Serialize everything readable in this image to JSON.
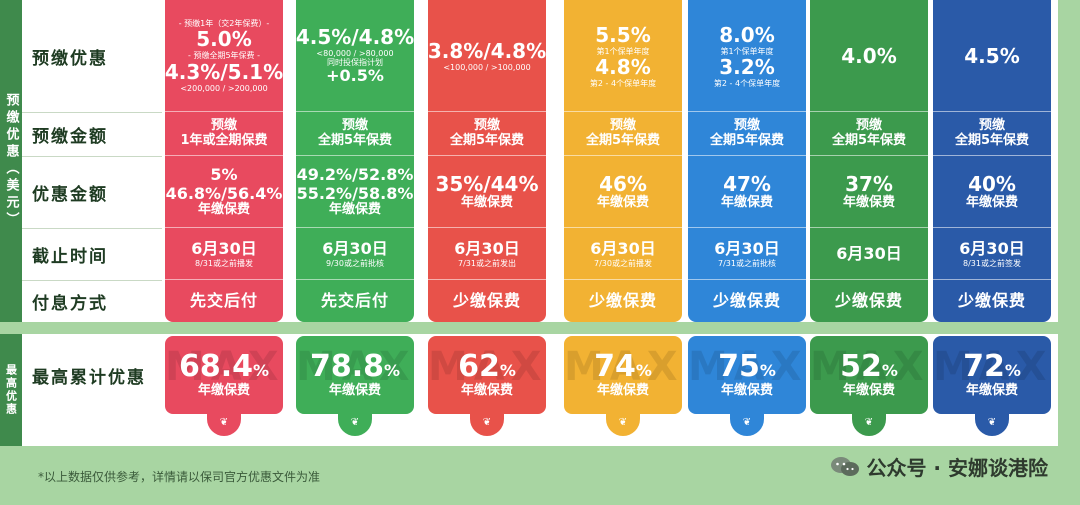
{
  "side_labels": {
    "top": "预缴优惠（美元）",
    "bottom": "最高优惠"
  },
  "row_labels": [
    "预缴优惠",
    "预缴金额",
    "优惠金额",
    "截止时间",
    "付息方式"
  ],
  "max_row_label": "最高累计优惠",
  "watermark": "MAX",
  "columns": [
    {
      "color": "#e84a5f",
      "discount": [
        "- 预缴1年（交2年保费）-",
        "5.0%",
        "- 预缴全期5年保费 -",
        "4.3%/5.1%",
        "<200,000  /  >200,000"
      ],
      "prepay": [
        "预缴",
        "1年或全期保费"
      ],
      "amount": [
        "5%",
        "46.8%/56.4%",
        "年缴保费"
      ],
      "deadline": [
        "6月30日",
        "8/31或之前播发"
      ],
      "payment": "先交后付",
      "max": [
        "68.4",
        "%",
        "年缴保费"
      ]
    },
    {
      "color": "#3fae58",
      "discount": [
        "4.5%/4.8%",
        "<80,000  /  >80,000",
        "同时投保指计划",
        "+0.5%"
      ],
      "prepay": [
        "预缴",
        "全期5年保费"
      ],
      "amount": [
        "49.2%/52.8%",
        "55.2%/58.8%",
        "年缴保费"
      ],
      "deadline": [
        "6月30日",
        "9/30或之前批核"
      ],
      "payment": "先交后付",
      "max": [
        "78.8",
        "%",
        "年缴保费"
      ]
    },
    {
      "color": "#e8524a",
      "discount": [
        "3.8%/4.8%",
        "<100,000  /  >100,000"
      ],
      "prepay": [
        "预缴",
        "全期5年保费"
      ],
      "amount": [
        "35%/44%",
        "年缴保费"
      ],
      "deadline": [
        "6月30日",
        "7/31或之前发出"
      ],
      "payment": "少缴保费",
      "max": [
        "62",
        "%",
        "年缴保费"
      ]
    },
    {
      "color": "#f2b233",
      "discount": [
        "5.5%",
        "第1个保单年度",
        "4.8%",
        "第2 - 4个保单年度"
      ],
      "prepay": [
        "预缴",
        "全期5年保费"
      ],
      "amount": [
        "46%",
        "年缴保费"
      ],
      "deadline": [
        "6月30日",
        "7/30或之前播发"
      ],
      "payment": "少缴保费",
      "max": [
        "74",
        "%",
        "年缴保费"
      ]
    },
    {
      "color": "#2f86d8",
      "discount": [
        "8.0%",
        "第1个保单年度",
        "3.2%",
        "第2 - 4个保单年度"
      ],
      "prepay": [
        "预缴",
        "全期5年保费"
      ],
      "amount": [
        "47%",
        "年缴保费"
      ],
      "deadline": [
        "6月30日",
        "7/31或之前批核"
      ],
      "payment": "少缴保费",
      "max": [
        "75",
        "%",
        "年缴保费"
      ]
    },
    {
      "color": "#3c9a4d",
      "discount": [
        "4.0%"
      ],
      "prepay": [
        "预缴",
        "全期5年保费"
      ],
      "amount": [
        "37%",
        "年缴保费"
      ],
      "deadline": [
        "6月30日"
      ],
      "payment": "少缴保费",
      "max": [
        "52",
        "%",
        "年缴保费"
      ]
    },
    {
      "color": "#2a5aa8",
      "discount": [
        "4.5%"
      ],
      "prepay": [
        "预缴",
        "全期5年保费"
      ],
      "amount": [
        "40%",
        "年缴保费"
      ],
      "deadline": [
        "6月30日",
        "8/31或之前签发"
      ],
      "payment": "少缴保费",
      "max": [
        "72",
        "%",
        "年缴保费"
      ]
    }
  ],
  "footnote": "*以上数据仅供参考，详情请以保司官方优惠文件为准",
  "brand": {
    "icon": "wechat-icon",
    "text": "公众号 · 安娜谈港险"
  }
}
